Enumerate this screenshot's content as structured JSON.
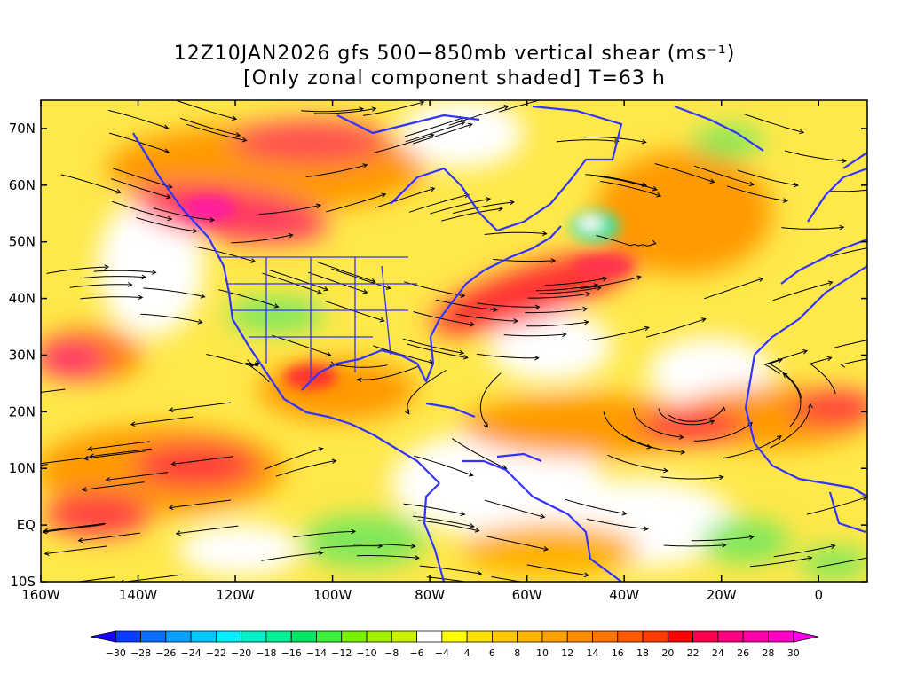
{
  "header": {
    "title_line1": "12Z10JAN2026 gfs 500−850mb vertical shear (ms⁻¹)",
    "title_line2": "[Only zonal component shaded] T=63 h"
  },
  "map": {
    "lat_labels": [
      "70N",
      "60N",
      "50N",
      "40N",
      "30N",
      "20N",
      "10N",
      "EQ",
      "10S"
    ],
    "lat_values": [
      70,
      60,
      50,
      40,
      30,
      20,
      10,
      0,
      -10
    ],
    "lon_labels": [
      "160W",
      "140W",
      "120W",
      "100W",
      "80W",
      "60W",
      "40W",
      "20W",
      "0"
    ],
    "lon_values": [
      -160,
      -140,
      -120,
      -100,
      -80,
      -60,
      -40,
      -20,
      0
    ],
    "lon_range": [
      -160,
      10
    ],
    "lat_range": [
      -10,
      75
    ]
  },
  "colorbar": {
    "levels": [
      "-30",
      "-28",
      "-26",
      "-24",
      "-22",
      "-20",
      "-18",
      "-16",
      "-14",
      "-12",
      "-10",
      "-8",
      "-6",
      "-4",
      "4",
      "6",
      "8",
      "10",
      "12",
      "14",
      "16",
      "18",
      "20",
      "22",
      "24",
      "26",
      "28",
      "30"
    ],
    "colors": [
      "#1a00ff",
      "#0a3cff",
      "#0a6eff",
      "#0aa0ff",
      "#00c8ff",
      "#00f0ff",
      "#00f0c8",
      "#00f096",
      "#00e664",
      "#3cf03c",
      "#78f000",
      "#a0f000",
      "#c8f000",
      "#ffffff",
      "#ffff00",
      "#ffe100",
      "#ffc800",
      "#ffb400",
      "#ffa000",
      "#ff8c00",
      "#ff7300",
      "#ff5a00",
      "#ff3c00",
      "#ff0000",
      "#ff0050",
      "#ff0082",
      "#ff00aa",
      "#ff00c8",
      "#ff00e6"
    ]
  }
}
